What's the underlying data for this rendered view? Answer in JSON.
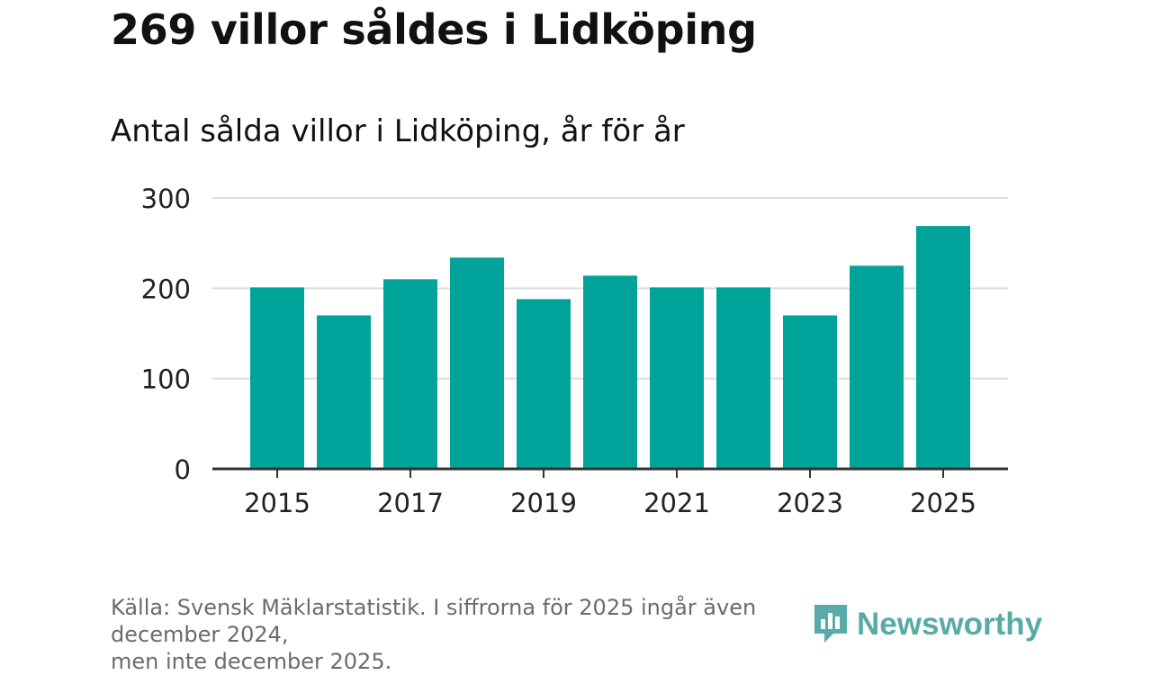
{
  "header": {
    "title": "269 villor såldes i Lidköping",
    "subtitle": "Antal sålda villor i Lidköping, år för år"
  },
  "chart_data": {
    "type": "bar",
    "title": "269 villor såldes i Lidköping",
    "subtitle": "Antal sålda villor i Lidköping, år för år",
    "categories": [
      "2015",
      "2016",
      "2017",
      "2018",
      "2019",
      "2020",
      "2021",
      "2022",
      "2023",
      "2024",
      "2025"
    ],
    "values": [
      201,
      170,
      210,
      234,
      188,
      214,
      201,
      201,
      170,
      225,
      269
    ],
    "xtick_labels": [
      "2015",
      "2017",
      "2019",
      "2021",
      "2023",
      "2025"
    ],
    "ytick_labels": [
      "0",
      "100",
      "200",
      "300"
    ],
    "yticks": [
      0,
      100,
      200,
      300
    ],
    "ylim": [
      0,
      300
    ],
    "xlabel": "",
    "ylabel": "",
    "grid": true,
    "legend": "none",
    "bar_color": "#00a39a"
  },
  "footer": {
    "source_line1": "Källa: Svensk Mäklarstatistik. I siffrorna för 2025 ingår även december 2024,",
    "source_line2": "men inte december 2025."
  },
  "brand": {
    "name": "Newsworthy",
    "icon": "newsworthy-logo-icon",
    "color": "#4aa49e"
  },
  "colors": {
    "bar": "#00a39a",
    "grid": "#dddddd",
    "axis": "#333333",
    "text": "#111111",
    "footer_text": "#6b6b6b"
  }
}
